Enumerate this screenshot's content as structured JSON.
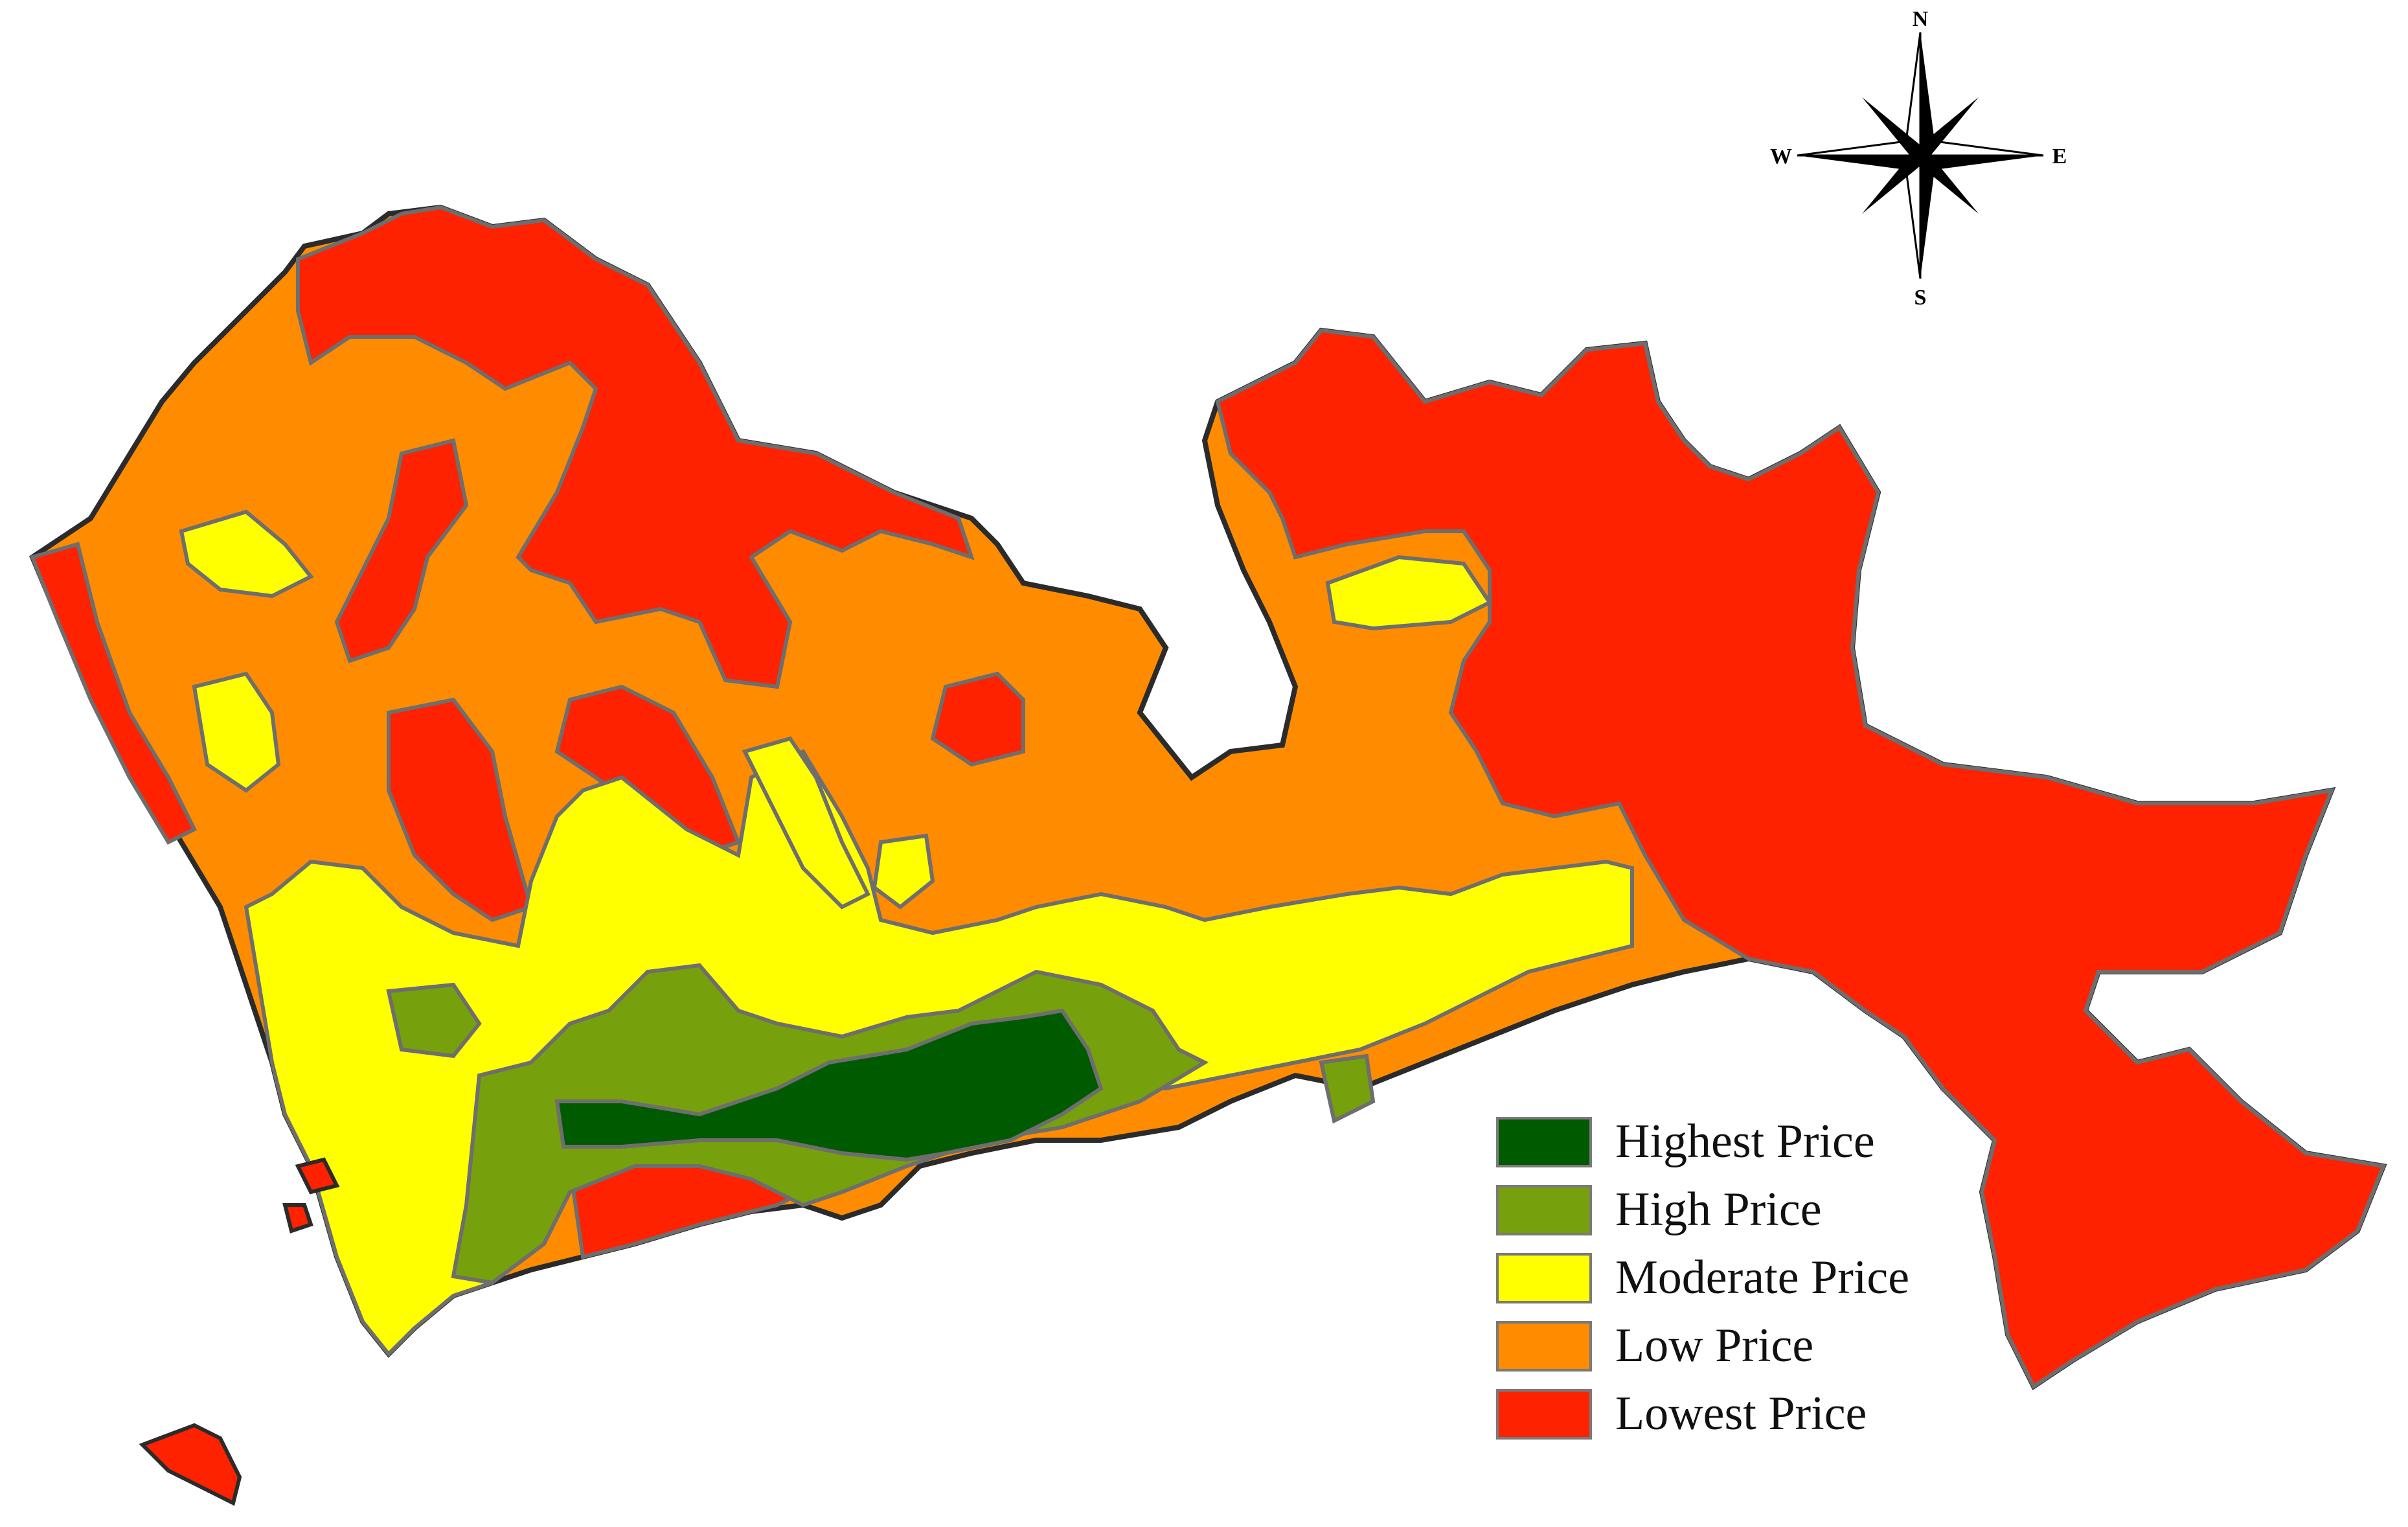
{
  "map": {
    "compass": {
      "north": "N",
      "south": "S",
      "east": "E",
      "west": "W"
    },
    "colors": {
      "outline": "#2b2b2b",
      "boundary": "#6e6e6e",
      "background": "#ffffff"
    }
  },
  "legend": {
    "items": [
      {
        "label": "Highest Price",
        "color": "#005a00"
      },
      {
        "label": "High Price",
        "color": "#76a10c"
      },
      {
        "label": "Moderate Price",
        "color": "#ffff00"
      },
      {
        "label": "Low Price",
        "color": "#ff8c00"
      },
      {
        "label": "Lowest Price",
        "color": "#ff2200"
      }
    ]
  }
}
